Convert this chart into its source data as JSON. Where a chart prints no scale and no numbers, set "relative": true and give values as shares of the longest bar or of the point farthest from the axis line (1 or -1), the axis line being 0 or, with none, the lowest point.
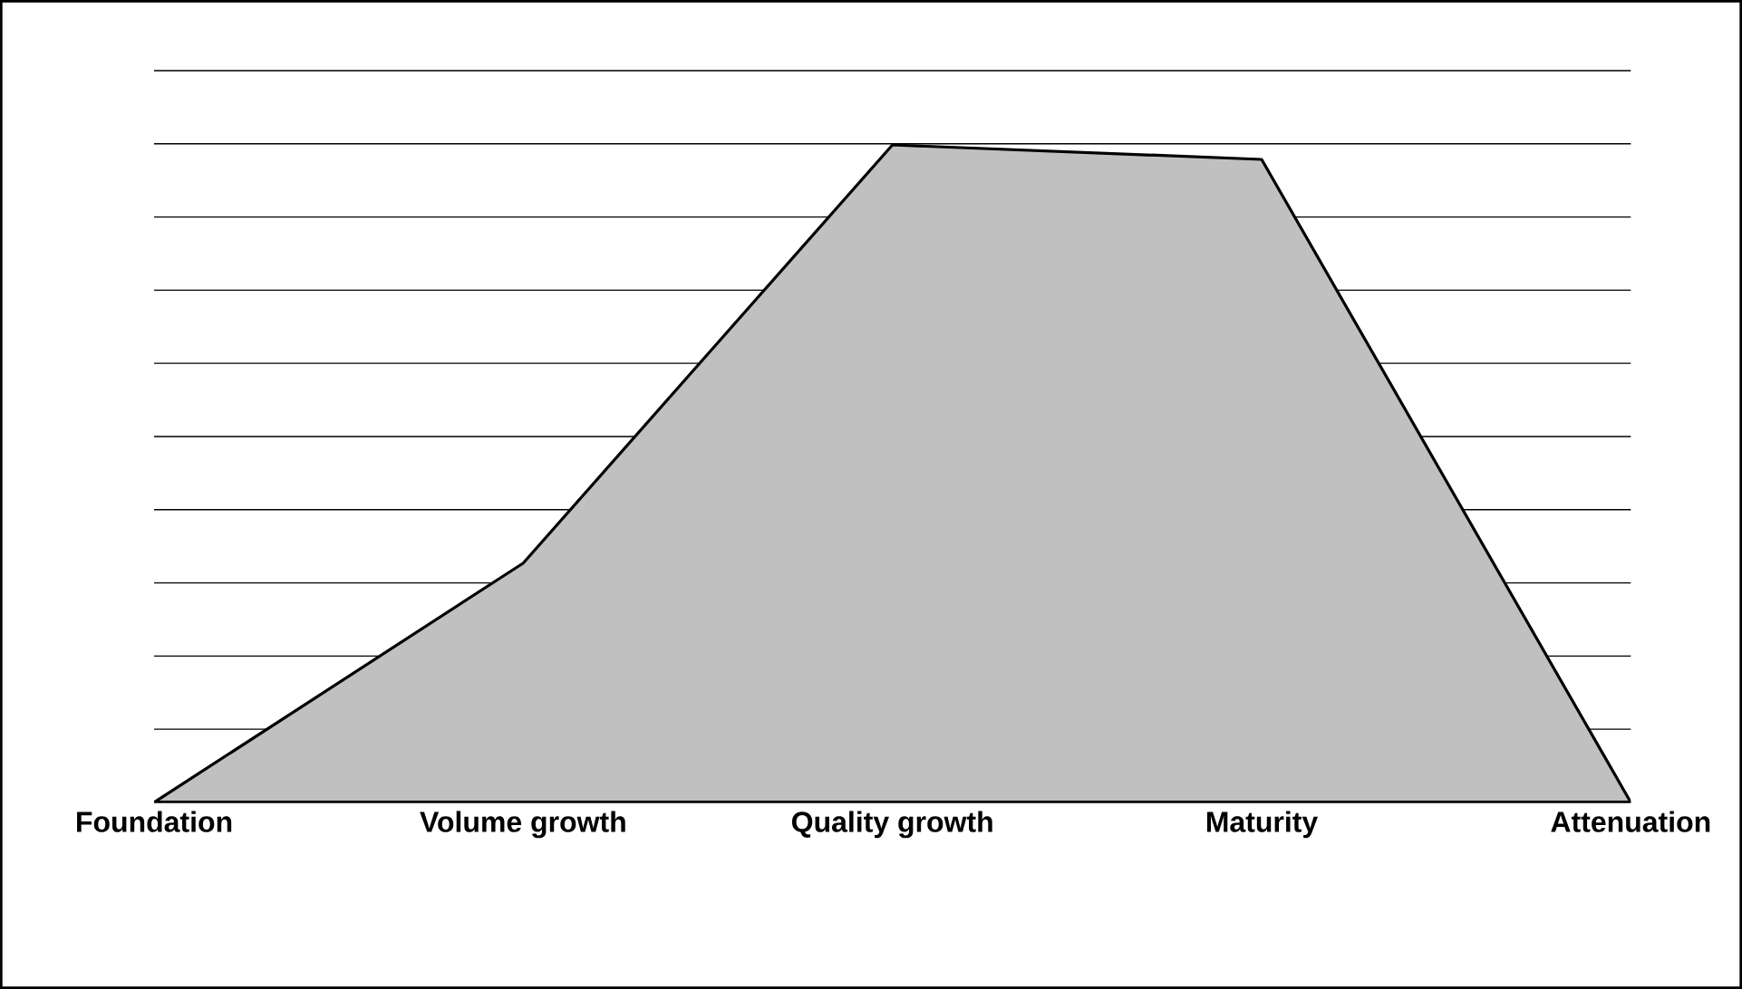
{
  "chart_data": {
    "type": "area",
    "relative": true,
    "grid": "y",
    "categories": [
      "Foundation",
      "Volume growth",
      "Quality growth",
      "Maturity",
      "Attenuation"
    ],
    "series": [
      {
        "color": "#c0c0c0",
        "values": [
          0,
          0.364,
          1,
          0.978,
          0
        ]
      }
    ]
  }
}
